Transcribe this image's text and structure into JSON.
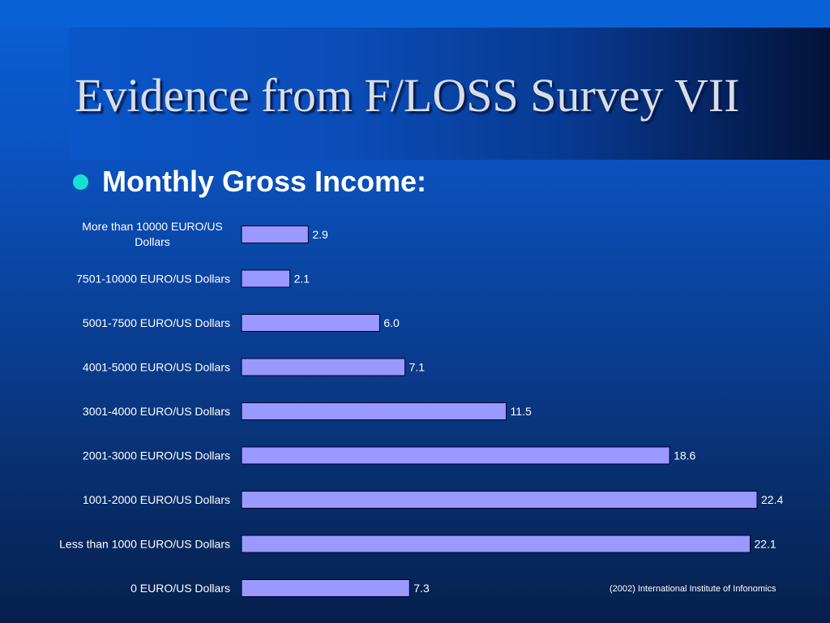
{
  "slide": {
    "title": "Evidence from F/LOSS Survey VII",
    "bullet": "Monthly Gross Income:",
    "source": "(2002) International Institute of Infonomics"
  },
  "colors": {
    "bar_fill": "#9999ff",
    "bar_stroke": "#000033",
    "bullet": "#16e0d2"
  },
  "chart_data": {
    "type": "bar",
    "orientation": "horizontal",
    "title": "",
    "xlabel": "",
    "ylabel": "",
    "xlim": [
      0,
      22.4
    ],
    "grid": false,
    "categories": [
      [
        "More than 10000 EURO/US",
        "Dollars"
      ],
      [
        "7501-10000 EURO/US Dollars"
      ],
      [
        "5001-7500 EURO/US Dollars"
      ],
      [
        "4001-5000 EURO/US Dollars"
      ],
      [
        "3001-4000 EURO/US Dollars"
      ],
      [
        "2001-3000 EURO/US Dollars"
      ],
      [
        "1001-2000 EURO/US Dollars"
      ],
      [
        "Less than 1000 EURO/US Dollars"
      ],
      [
        "0 EURO/US Dollars"
      ]
    ],
    "values": [
      2.9,
      2.1,
      6.0,
      7.1,
      11.5,
      18.6,
      22.4,
      22.1,
      7.3
    ],
    "value_labels": [
      "2.9",
      "2.1",
      "6.0",
      "7.1",
      "11.5",
      "18.6",
      "22.4",
      "22.1",
      "7.3"
    ]
  }
}
